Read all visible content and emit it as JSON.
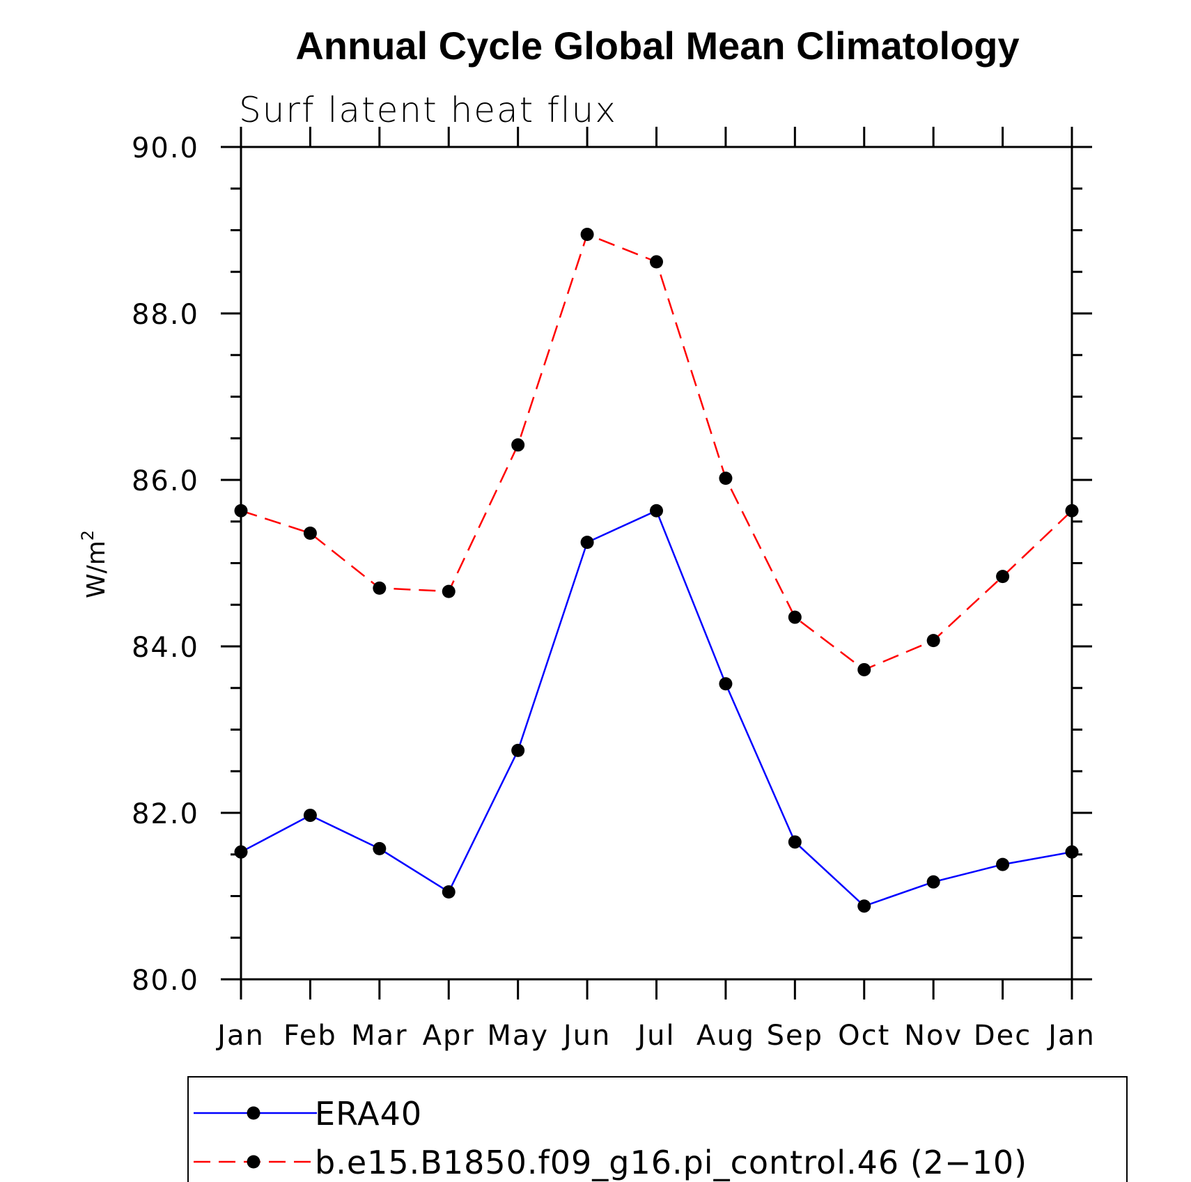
{
  "chart_data": {
    "type": "line",
    "title": "Annual Cycle Global Mean Climatology",
    "subtitle": "Surf latent heat flux",
    "ylabel": "W/m",
    "ylabel_superscript": "2",
    "xlabel": "",
    "ylim": [
      80.0,
      90.0
    ],
    "yticks": [
      "80.0",
      "82.0",
      "84.0",
      "86.0",
      "88.0",
      "90.0"
    ],
    "categories": [
      "Jan",
      "Feb",
      "Mar",
      "Apr",
      "May",
      "Jun",
      "Jul",
      "Aug",
      "Sep",
      "Oct",
      "Nov",
      "Dec",
      "Jan"
    ],
    "series": [
      {
        "name": "ERA40",
        "color": "#0000ff",
        "dash": "solid",
        "marker": "filled-circle",
        "values": [
          81.53,
          81.97,
          81.57,
          81.05,
          82.75,
          85.25,
          85.63,
          83.55,
          81.65,
          80.88,
          81.17,
          81.38,
          81.53
        ]
      },
      {
        "name": "b.e15.B1850.f09_g16.pi_control.46 (2−10)",
        "color": "#ff0000",
        "dash": "dashed",
        "marker": "filled-circle",
        "values": [
          85.63,
          85.36,
          84.7,
          84.66,
          86.42,
          88.95,
          88.62,
          86.02,
          84.35,
          83.72,
          84.07,
          84.84,
          85.63
        ]
      }
    ],
    "legend_position": "bottom"
  }
}
